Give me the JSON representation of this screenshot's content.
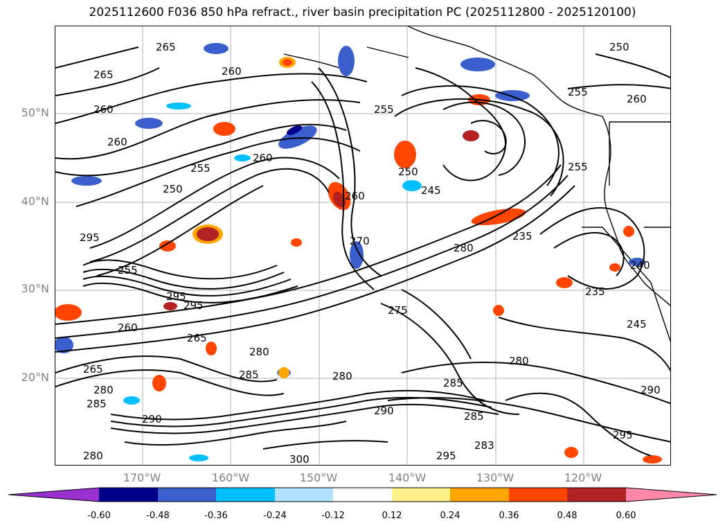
{
  "title": "2025112600 F036 850 hPa refract., river basin precipitation PC (2025112800 - 2025120100)",
  "lat_labels": [
    "50°N",
    "40°N",
    "30°N",
    "20°N"
  ],
  "lon_labels": [
    "170°W",
    "160°W",
    "150°W",
    "140°W",
    "130°W",
    "120°W"
  ],
  "contour_labels": [
    "265",
    "265",
    "260",
    "260",
    "260",
    "255",
    "250",
    "255",
    "260",
    "255",
    "250",
    "260",
    "245",
    "250",
    "255",
    "260",
    "235",
    "240",
    "235",
    "245",
    "295",
    "255",
    "280",
    "295",
    "295",
    "260",
    "265",
    "280",
    "275",
    "265",
    "270",
    "285",
    "290",
    "285",
    "280",
    "300",
    "295",
    "283",
    "280",
    "295",
    "290",
    "285",
    "280",
    "280",
    "285",
    "290"
  ],
  "colorbar": {
    "ticks": [
      "-0.60",
      "-0.48",
      "-0.36",
      "-0.24",
      "-0.12",
      "0.12",
      "0.24",
      "0.36",
      "0.48",
      "0.60"
    ],
    "colors": [
      "#9b30d0",
      "#00008b",
      "#3a5fcd",
      "#00bfff",
      "#b0e2ff",
      "#ffffff",
      "#fff08a",
      "#ffa500",
      "#ff4500",
      "#b22222",
      "#ff88aa"
    ]
  }
}
